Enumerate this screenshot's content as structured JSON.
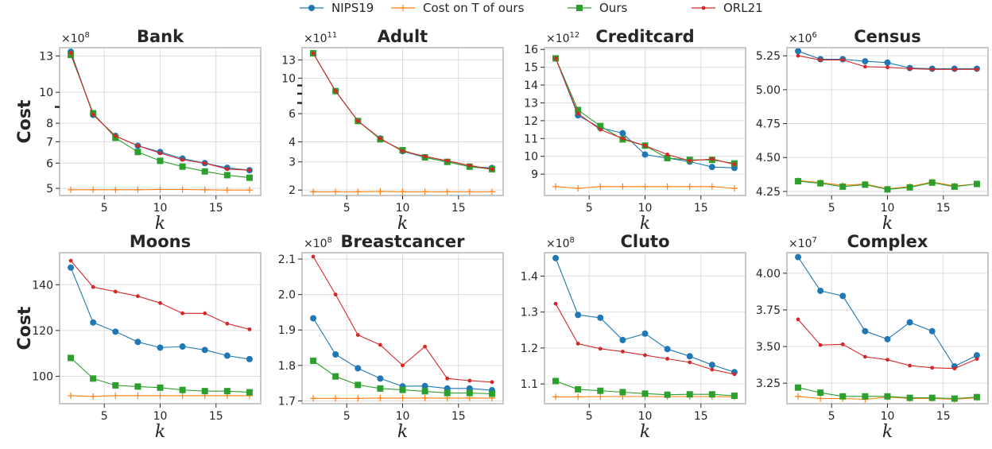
{
  "legend": {
    "placement": "top-center",
    "entries": [
      {
        "name": "NIPS19",
        "color": "#1f77b4",
        "marker": "circle"
      },
      {
        "name": "Cost on T of ours",
        "color": "#ff7f0e",
        "marker": "plus"
      },
      {
        "name": "Ours",
        "color": "#2ca02c",
        "marker": "square"
      },
      {
        "name": "ORL21",
        "color": "#d62728",
        "marker": "dot"
      }
    ]
  },
  "chart_data": [
    {
      "type": "line",
      "title": "Bank",
      "xlabel": "k",
      "ylabel": "Cost",
      "multiplier": "×10",
      "multiplier_exp": "8",
      "yscale": "log",
      "xlim": [
        1,
        19
      ],
      "ylim": [
        4.75,
        13.8
      ],
      "xticks": [
        5,
        10,
        15
      ],
      "yticks": [
        5,
        6,
        7,
        8,
        9,
        10,
        13
      ],
      "ytick_labels": [
        "5",
        "6",
        "7",
        "8",
        "",
        "10",
        "13"
      ],
      "x": [
        2,
        4,
        6,
        8,
        10,
        12,
        14,
        16,
        18
      ],
      "series": [
        {
          "name": "NIPS19",
          "values": [
            13.4,
            8.5,
            7.3,
            6.8,
            6.5,
            6.2,
            6.0,
            5.8,
            5.7
          ]
        },
        {
          "name": "Cost on T of ours",
          "values": [
            4.95,
            4.95,
            4.95,
            4.95,
            4.96,
            4.96,
            4.95,
            4.94,
            4.94
          ]
        },
        {
          "name": "Ours",
          "values": [
            13.1,
            8.6,
            7.2,
            6.5,
            6.1,
            5.85,
            5.65,
            5.5,
            5.4
          ]
        },
        {
          "name": "ORL21",
          "values": [
            13.3,
            8.5,
            7.3,
            6.8,
            6.45,
            6.15,
            6.0,
            5.75,
            5.7
          ]
        }
      ]
    },
    {
      "type": "line",
      "title": "Adult",
      "xlabel": "k",
      "ylabel": "",
      "multiplier": "×10",
      "multiplier_exp": "11",
      "yscale": "log",
      "xlim": [
        1,
        19
      ],
      "ylim": [
        1.85,
        15.5
      ],
      "xticks": [
        5,
        10,
        15
      ],
      "yticks": [
        2,
        3,
        4,
        6,
        7,
        8,
        9,
        10,
        13
      ],
      "ytick_labels": [
        "2",
        "3",
        "4",
        "6",
        "",
        "",
        "",
        "10",
        "13"
      ],
      "x": [
        2,
        4,
        6,
        8,
        10,
        12,
        14,
        16,
        18
      ],
      "series": [
        {
          "name": "NIPS19",
          "values": [
            14.3,
            8.3,
            5.4,
            4.2,
            3.5,
            3.2,
            3.0,
            2.8,
            2.75
          ]
        },
        {
          "name": "Cost on T of ours",
          "values": [
            1.95,
            1.95,
            1.95,
            1.96,
            1.95,
            1.95,
            1.95,
            1.95,
            1.95
          ]
        },
        {
          "name": "Ours",
          "values": [
            14.3,
            8.3,
            5.4,
            4.15,
            3.55,
            3.2,
            3.0,
            2.8,
            2.7
          ]
        },
        {
          "name": "ORL21",
          "values": [
            14.3,
            8.3,
            5.4,
            4.2,
            3.5,
            3.25,
            3.05,
            2.85,
            2.7
          ]
        }
      ]
    },
    {
      "type": "line",
      "title": "Creditcard",
      "xlabel": "k",
      "ylabel": "",
      "multiplier": "×10",
      "multiplier_exp": "12",
      "yscale": "linear",
      "xlim": [
        1,
        19
      ],
      "ylim": [
        7.8,
        16.1
      ],
      "xticks": [
        5,
        10,
        15
      ],
      "yticks": [
        9,
        10,
        11,
        12,
        13,
        14,
        15,
        16
      ],
      "ytick_labels": [
        "9",
        "10",
        "11",
        "12",
        "13",
        "14",
        "15",
        "16"
      ],
      "x": [
        2,
        4,
        6,
        8,
        10,
        12,
        14,
        16,
        18
      ],
      "series": [
        {
          "name": "NIPS19",
          "values": [
            15.5,
            12.3,
            11.6,
            11.3,
            10.1,
            9.9,
            9.7,
            9.4,
            9.35
          ]
        },
        {
          "name": "Cost on T of ours",
          "values": [
            8.3,
            8.2,
            8.3,
            8.3,
            8.3,
            8.3,
            8.3,
            8.3,
            8.2
          ]
        },
        {
          "name": "Ours",
          "values": [
            15.5,
            12.6,
            11.7,
            10.95,
            10.6,
            9.9,
            9.8,
            9.8,
            9.6
          ]
        },
        {
          "name": "ORL21",
          "values": [
            15.5,
            12.4,
            11.5,
            11.0,
            10.6,
            10.1,
            9.75,
            9.85,
            9.55
          ]
        }
      ]
    },
    {
      "type": "line",
      "title": "Census",
      "xlabel": "k",
      "ylabel": "",
      "multiplier": "×10",
      "multiplier_exp": "6",
      "yscale": "linear",
      "xlim": [
        1,
        19
      ],
      "ylim": [
        4.22,
        5.31
      ],
      "xticks": [
        5,
        10,
        15
      ],
      "yticks": [
        4.25,
        4.5,
        4.75,
        5.0,
        5.25
      ],
      "ytick_labels": [
        "4.25",
        "4.50",
        "4.75",
        "5.00",
        "5.25"
      ],
      "x": [
        2,
        4,
        6,
        8,
        10,
        12,
        14,
        16,
        18
      ],
      "series": [
        {
          "name": "NIPS19",
          "values": [
            5.285,
            5.225,
            5.225,
            5.21,
            5.2,
            5.16,
            5.155,
            5.155,
            5.155
          ]
        },
        {
          "name": "Cost on T of ours",
          "values": [
            4.33,
            4.315,
            4.295,
            4.305,
            4.27,
            4.285,
            4.32,
            4.29,
            4.305
          ]
        },
        {
          "name": "Ours",
          "values": [
            4.325,
            4.31,
            4.285,
            4.3,
            4.265,
            4.28,
            4.315,
            4.285,
            4.305
          ]
        },
        {
          "name": "ORL21",
          "values": [
            5.25,
            5.22,
            5.22,
            5.17,
            5.165,
            5.155,
            5.15,
            5.15,
            5.15
          ]
        }
      ]
    },
    {
      "type": "line",
      "title": "Moons",
      "xlabel": "k",
      "ylabel": "Cost",
      "multiplier": "",
      "multiplier_exp": "",
      "yscale": "linear",
      "xlim": [
        1,
        19
      ],
      "ylim": [
        88,
        154
      ],
      "xticks": [
        5,
        10,
        15
      ],
      "yticks": [
        100,
        120,
        140
      ],
      "ytick_labels": [
        "100",
        "120",
        "140"
      ],
      "x": [
        2,
        4,
        6,
        8,
        10,
        12,
        14,
        16,
        18
      ],
      "series": [
        {
          "name": "NIPS19",
          "values": [
            147.5,
            123.5,
            119.5,
            115,
            112.5,
            113,
            111.5,
            109,
            107.5
          ]
        },
        {
          "name": "Cost on T of ours",
          "values": [
            91.5,
            91.2,
            91.5,
            91.5,
            91.5,
            91.5,
            91.5,
            91.5,
            91.5
          ]
        },
        {
          "name": "Ours",
          "values": [
            108,
            99,
            96,
            95.5,
            95,
            94,
            93.5,
            93.5,
            93
          ]
        },
        {
          "name": "ORL21",
          "values": [
            150.5,
            139,
            137,
            135,
            132,
            127.5,
            127.5,
            123,
            120.5
          ]
        }
      ]
    },
    {
      "type": "line",
      "title": "Breastcancer",
      "xlabel": "k",
      "ylabel": "",
      "multiplier": "×10",
      "multiplier_exp": "8",
      "yscale": "linear",
      "xlim": [
        1,
        19
      ],
      "ylim": [
        1.692,
        2.118
      ],
      "xticks": [
        5,
        10,
        15
      ],
      "yticks": [
        1.7,
        1.8,
        1.9,
        2.0,
        2.1
      ],
      "ytick_labels": [
        "1.7",
        "1.8",
        "1.9",
        "2.0",
        "2.1"
      ],
      "x": [
        2,
        4,
        6,
        8,
        10,
        12,
        14,
        16,
        18
      ],
      "series": [
        {
          "name": "NIPS19",
          "values": [
            1.933,
            1.831,
            1.792,
            1.763,
            1.741,
            1.742,
            1.735,
            1.735,
            1.73
          ]
        },
        {
          "name": "Cost on T of ours",
          "values": [
            1.707,
            1.707,
            1.707,
            1.708,
            1.708,
            1.708,
            1.708,
            1.708,
            1.708
          ]
        },
        {
          "name": "Ours",
          "values": [
            1.813,
            1.769,
            1.745,
            1.735,
            1.731,
            1.727,
            1.722,
            1.722,
            1.72
          ]
        },
        {
          "name": "ORL21",
          "values": [
            2.107,
            2.0,
            1.886,
            1.858,
            1.8,
            1.853,
            1.763,
            1.757,
            1.753
          ]
        }
      ]
    },
    {
      "type": "line",
      "title": "Cluto",
      "xlabel": "k",
      "ylabel": "",
      "multiplier": "×10",
      "multiplier_exp": "8",
      "yscale": "linear",
      "xlim": [
        1,
        19
      ],
      "ylim": [
        1.045,
        1.465
      ],
      "xticks": [
        5,
        10,
        15
      ],
      "yticks": [
        1.1,
        1.2,
        1.3,
        1.4
      ],
      "ytick_labels": [
        "1.1",
        "1.2",
        "1.3",
        "1.4"
      ],
      "x": [
        2,
        4,
        6,
        8,
        10,
        12,
        14,
        16,
        18
      ],
      "series": [
        {
          "name": "NIPS19",
          "values": [
            1.45,
            1.292,
            1.284,
            1.222,
            1.24,
            1.197,
            1.177,
            1.153,
            1.133
          ]
        },
        {
          "name": "Cost on T of ours",
          "values": [
            1.064,
            1.064,
            1.065,
            1.065,
            1.065,
            1.065,
            1.065,
            1.065,
            1.064
          ]
        },
        {
          "name": "Ours",
          "values": [
            1.108,
            1.085,
            1.081,
            1.077,
            1.073,
            1.07,
            1.071,
            1.071,
            1.067
          ]
        },
        {
          "name": "ORL21",
          "values": [
            1.323,
            1.212,
            1.198,
            1.19,
            1.18,
            1.17,
            1.16,
            1.14,
            1.127
          ]
        }
      ]
    },
    {
      "type": "line",
      "title": "Complex",
      "xlabel": "k",
      "ylabel": "",
      "multiplier": "×10",
      "multiplier_exp": "7",
      "yscale": "linear",
      "xlim": [
        1,
        19
      ],
      "ylim": [
        3.11,
        4.14
      ],
      "xticks": [
        5,
        10,
        15
      ],
      "yticks": [
        3.25,
        3.5,
        3.75,
        4.0
      ],
      "ytick_labels": [
        "3.25",
        "3.50",
        "3.75",
        "4.00"
      ],
      "x": [
        2,
        4,
        6,
        8,
        10,
        12,
        14,
        16,
        18
      ],
      "series": [
        {
          "name": "NIPS19",
          "values": [
            4.11,
            3.88,
            3.845,
            3.605,
            3.55,
            3.665,
            3.605,
            3.365,
            3.44
          ]
        },
        {
          "name": "Cost on T of ours",
          "values": [
            3.16,
            3.145,
            3.145,
            3.14,
            3.155,
            3.145,
            3.145,
            3.14,
            3.15
          ]
        },
        {
          "name": "Ours",
          "values": [
            3.22,
            3.185,
            3.16,
            3.16,
            3.16,
            3.15,
            3.15,
            3.145,
            3.155
          ]
        },
        {
          "name": "ORL21",
          "values": [
            3.685,
            3.51,
            3.515,
            3.43,
            3.41,
            3.37,
            3.355,
            3.35,
            3.415
          ]
        }
      ]
    }
  ]
}
